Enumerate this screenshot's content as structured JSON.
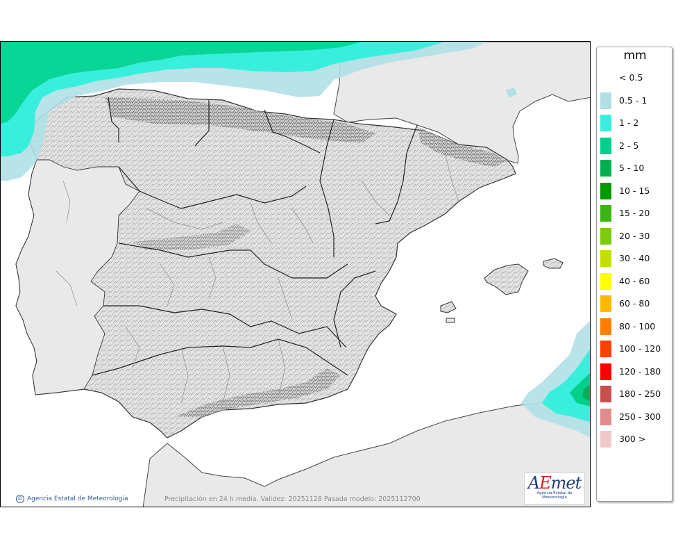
{
  "map": {
    "legend_title": "mm",
    "legend": [
      {
        "label": "< 0.5",
        "color": "#ffffff"
      },
      {
        "label": "0.5 - 1",
        "color": "#b0e0e6"
      },
      {
        "label": "1 - 2",
        "color": "#37efdc"
      },
      {
        "label": "2 - 5",
        "color": "#00d08a"
      },
      {
        "label": "5 - 10",
        "color": "#00b050"
      },
      {
        "label": "10 - 15",
        "color": "#009a00"
      },
      {
        "label": "15 - 20",
        "color": "#3cb414"
      },
      {
        "label": "20 - 30",
        "color": "#7dca0e"
      },
      {
        "label": "30 - 40",
        "color": "#c2e000"
      },
      {
        "label": "40 - 60",
        "color": "#ffff00"
      },
      {
        "label": "60 - 80",
        "color": "#ffb800"
      },
      {
        "label": "80 - 100",
        "color": "#ff7d00"
      },
      {
        "label": "100 - 120",
        "color": "#ff4100"
      },
      {
        "label": "120 - 180",
        "color": "#ff0000"
      },
      {
        "label": "180 - 250",
        "color": "#c85050"
      },
      {
        "label": "250 - 300",
        "color": "#e08c8c"
      },
      {
        "label": "300 >",
        "color": "#f0c8c8"
      }
    ],
    "caption": "Precipitación en 24 h media. Validez: 20251128 Pasada modelo: 2025112700",
    "credit": "Agencia Estatal de Meteorología",
    "logo_text": "AEmet",
    "logo_subtitle": "Agencia Estatal de Meteorología",
    "land_color": "#e9e9e9",
    "sea_color": "#ffffff"
  }
}
